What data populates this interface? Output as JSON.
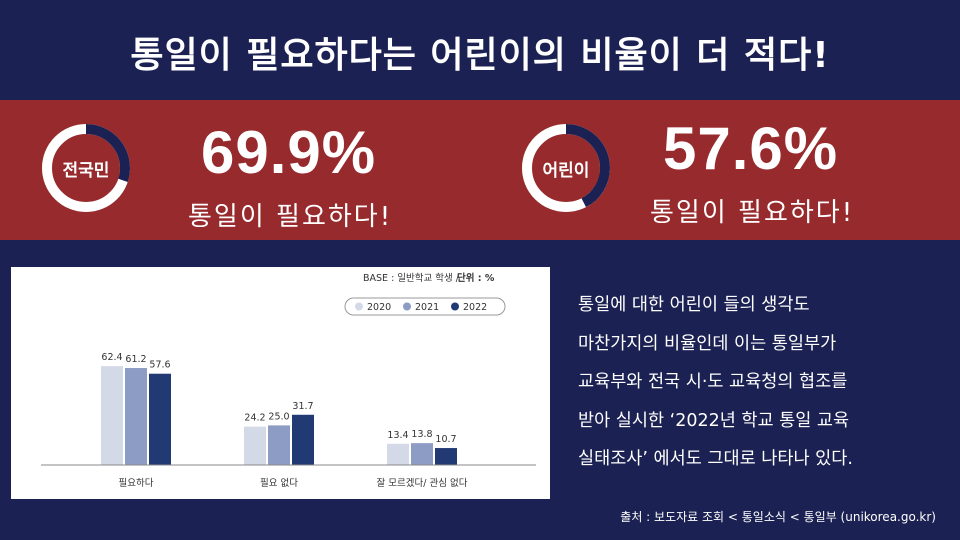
{
  "headline": "통일이 필요하다는 어린이의 비율이  더 적다!",
  "stats": [
    {
      "label": "전국민",
      "value": "69.9%",
      "fraction": 0.699,
      "caption": "통일이  필요하다!"
    },
    {
      "label": "어린이",
      "value": "57.6%",
      "fraction": 0.576,
      "caption": "통일이  필요하다!"
    }
  ],
  "colors": {
    "background": "#1b2152",
    "band": "#962a2c",
    "series_2020": "#d4d9e7",
    "series_2021": "#8d9cc4",
    "series_2022": "#223a74"
  },
  "chart_data": {
    "type": "bar",
    "note_base": "BASE : 일반학교 학생 /",
    "note_unit": "단위 : %",
    "categories": [
      "필요하다",
      "필요 없다",
      "잘 모르겠다/ 관심 없다"
    ],
    "series": [
      {
        "name": "2020",
        "values": [
          62.4,
          24.2,
          13.4
        ]
      },
      {
        "name": "2021",
        "values": [
          61.2,
          25.0,
          13.8
        ]
      },
      {
        "name": "2022",
        "values": [
          57.6,
          31.7,
          10.7
        ]
      }
    ],
    "ylim": [
      0,
      65
    ],
    "grid": false,
    "legend_position": "top-right"
  },
  "body_lines": [
    "통일에 대한 어린이 들의 생각도",
    "마찬가지의 비율인데 이는 통일부가",
    "교육부와 전국 시·도 교육청의 협조를",
    "받아 실시한 ‘2022년 학교 통일 교육",
    "실태조사’ 에서도 그대로 나타나 있다."
  ],
  "source": "출처 : 보도자료 조회 < 통일소식 < 통일부 (unikorea.go.kr)"
}
